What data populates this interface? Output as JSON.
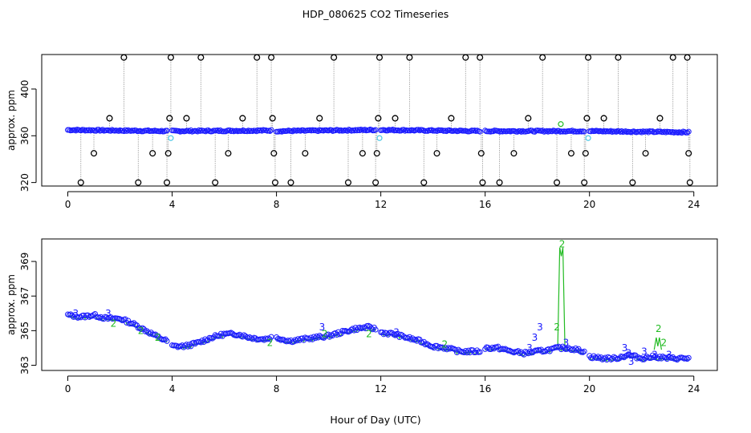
{
  "chart_data": [
    {
      "type": "scatter",
      "title": "HDP_080625  CO2 Timeseries",
      "ylabel": "approx. ppm",
      "xlim": [
        -1.0,
        24.9
      ],
      "ylim": [
        317.0,
        429.5
      ],
      "x_ticks": [
        0,
        4,
        8,
        12,
        16,
        20,
        24
      ],
      "y_ticks": [
        320,
        360,
        400
      ],
      "grid": false,
      "colors": {
        "main": "#1a1aff",
        "fill": "#4dc8e6",
        "outlier": "#000000",
        "green": "#22bb22",
        "line": "#999999"
      },
      "segments": [
        {
          "x": [
            0.0,
            3.8
          ],
          "y": [
            365.0,
            364.0
          ]
        },
        {
          "x": [
            4.0,
            7.8
          ],
          "y": [
            364.0,
            364.5
          ]
        },
        {
          "x": [
            8.0,
            11.8
          ],
          "y": [
            364.0,
            365.0
          ]
        },
        {
          "x": [
            12.0,
            15.8
          ],
          "y": [
            365.0,
            364.0
          ]
        },
        {
          "x": [
            16.0,
            19.8
          ],
          "y": [
            364.0,
            364.0
          ]
        },
        {
          "x": [
            20.0,
            23.8
          ],
          "y": [
            364.0,
            363.0
          ]
        }
      ],
      "filler_points": [
        {
          "x": 3.95,
          "y": 358
        },
        {
          "x": 11.95,
          "y": 358
        },
        {
          "x": 19.95,
          "y": 358
        },
        {
          "x": 18.9,
          "y": 370
        }
      ],
      "outliers": [
        {
          "x": 0.5,
          "y": 320
        },
        {
          "x": 1.0,
          "y": 345
        },
        {
          "x": 1.6,
          "y": 375
        },
        {
          "x": 2.15,
          "y": 427
        },
        {
          "x": 2.7,
          "y": 320
        },
        {
          "x": 3.25,
          "y": 345
        },
        {
          "x": 3.8,
          "y": 320
        },
        {
          "x": 3.85,
          "y": 345
        },
        {
          "x": 3.9,
          "y": 375
        },
        {
          "x": 3.95,
          "y": 427
        },
        {
          "x": 4.55,
          "y": 375
        },
        {
          "x": 5.1,
          "y": 427
        },
        {
          "x": 5.65,
          "y": 320
        },
        {
          "x": 6.15,
          "y": 345
        },
        {
          "x": 6.7,
          "y": 375
        },
        {
          "x": 7.25,
          "y": 427
        },
        {
          "x": 7.8,
          "y": 427
        },
        {
          "x": 7.85,
          "y": 375
        },
        {
          "x": 7.9,
          "y": 345
        },
        {
          "x": 7.95,
          "y": 320
        },
        {
          "x": 8.55,
          "y": 320
        },
        {
          "x": 9.1,
          "y": 345
        },
        {
          "x": 9.65,
          "y": 375
        },
        {
          "x": 10.2,
          "y": 427
        },
        {
          "x": 10.75,
          "y": 320
        },
        {
          "x": 11.3,
          "y": 345
        },
        {
          "x": 11.8,
          "y": 320
        },
        {
          "x": 11.85,
          "y": 345
        },
        {
          "x": 11.9,
          "y": 375
        },
        {
          "x": 11.95,
          "y": 427
        },
        {
          "x": 12.55,
          "y": 375
        },
        {
          "x": 13.1,
          "y": 427
        },
        {
          "x": 13.65,
          "y": 320
        },
        {
          "x": 14.15,
          "y": 345
        },
        {
          "x": 14.7,
          "y": 375
        },
        {
          "x": 15.25,
          "y": 427
        },
        {
          "x": 15.8,
          "y": 427
        },
        {
          "x": 15.85,
          "y": 345
        },
        {
          "x": 15.9,
          "y": 320
        },
        {
          "x": 16.55,
          "y": 320
        },
        {
          "x": 17.1,
          "y": 345
        },
        {
          "x": 17.65,
          "y": 375
        },
        {
          "x": 18.2,
          "y": 427
        },
        {
          "x": 18.75,
          "y": 320
        },
        {
          "x": 19.3,
          "y": 345
        },
        {
          "x": 19.8,
          "y": 320
        },
        {
          "x": 19.85,
          "y": 345
        },
        {
          "x": 19.9,
          "y": 375
        },
        {
          "x": 19.95,
          "y": 427
        },
        {
          "x": 20.55,
          "y": 375
        },
        {
          "x": 21.1,
          "y": 427
        },
        {
          "x": 21.65,
          "y": 320
        },
        {
          "x": 22.15,
          "y": 345
        },
        {
          "x": 22.7,
          "y": 375
        },
        {
          "x": 23.2,
          "y": 427
        },
        {
          "x": 23.75,
          "y": 427
        },
        {
          "x": 23.8,
          "y": 345
        },
        {
          "x": 23.85,
          "y": 320
        }
      ]
    },
    {
      "type": "scatter",
      "title": "",
      "xlabel": "Hour of Day (UTC)",
      "ylabel": "approx. ppm",
      "xlim": [
        -1.0,
        24.9
      ],
      "ylim": [
        362.7,
        370.3
      ],
      "x_ticks": [
        0,
        4,
        8,
        12,
        16,
        20,
        24
      ],
      "y_ticks": [
        363,
        365,
        367,
        369
      ],
      "grid": false,
      "colors": {
        "main": "#1a1aff",
        "green": "#22bb22"
      },
      "series": [
        {
          "x": [
            0.0,
            0.5,
            1.0,
            1.5,
            2.0,
            2.5,
            3.0,
            3.5,
            3.8
          ],
          "y": [
            365.9,
            365.8,
            365.9,
            365.7,
            365.7,
            365.4,
            365.0,
            364.6,
            364.4
          ]
        },
        {
          "x": [
            4.0,
            4.5,
            5.0,
            5.5,
            6.0,
            6.5,
            7.0,
            7.5,
            7.8
          ],
          "y": [
            364.1,
            364.1,
            364.3,
            364.6,
            364.8,
            364.8,
            364.6,
            364.5,
            364.6
          ]
        },
        {
          "x": [
            8.0,
            8.5,
            9.0,
            9.5,
            10.0,
            10.5,
            11.0,
            11.5,
            11.8
          ],
          "y": [
            364.6,
            364.4,
            364.5,
            364.6,
            364.7,
            364.9,
            365.1,
            365.2,
            365.1
          ]
        },
        {
          "x": [
            12.0,
            12.5,
            13.0,
            13.5,
            14.0,
            14.5,
            15.0,
            15.5,
            15.8
          ],
          "y": [
            364.9,
            364.8,
            364.6,
            364.4,
            364.1,
            364.0,
            363.8,
            363.8,
            363.8
          ]
        },
        {
          "x": [
            16.0,
            16.5,
            17.0,
            17.5,
            18.0,
            18.5,
            18.8,
            19.0,
            19.2,
            19.5,
            19.8
          ],
          "y": [
            364.0,
            364.0,
            363.8,
            363.7,
            363.8,
            363.9,
            364.0,
            364.0,
            364.0,
            363.9,
            363.8
          ]
        },
        {
          "x": [
            20.0,
            20.5,
            21.0,
            21.5,
            22.0,
            22.5,
            23.0,
            23.5,
            23.8
          ],
          "y": [
            363.5,
            363.4,
            363.4,
            363.6,
            363.4,
            363.5,
            363.4,
            363.4,
            363.4
          ]
        }
      ],
      "labels_3": [
        {
          "x": 0.3,
          "y": 366.0
        },
        {
          "x": 1.55,
          "y": 366.0
        },
        {
          "x": 9.75,
          "y": 365.2
        },
        {
          "x": 12.6,
          "y": 364.9
        },
        {
          "x": 17.7,
          "y": 364.0
        },
        {
          "x": 17.9,
          "y": 364.6
        },
        {
          "x": 18.1,
          "y": 365.2
        },
        {
          "x": 19.1,
          "y": 364.3
        },
        {
          "x": 21.35,
          "y": 364.0
        },
        {
          "x": 21.5,
          "y": 363.7
        },
        {
          "x": 21.6,
          "y": 363.2
        },
        {
          "x": 22.1,
          "y": 363.8
        },
        {
          "x": 22.5,
          "y": 363.6
        },
        {
          "x": 23.05,
          "y": 363.6
        }
      ],
      "labels_2": [
        {
          "x": 1.75,
          "y": 365.4
        },
        {
          "x": 2.8,
          "y": 365.0
        },
        {
          "x": 3.45,
          "y": 364.6
        },
        {
          "x": 7.75,
          "y": 364.3
        },
        {
          "x": 9.85,
          "y": 364.8
        },
        {
          "x": 11.55,
          "y": 364.8
        },
        {
          "x": 14.45,
          "y": 364.2
        },
        {
          "x": 18.75,
          "y": 365.2
        },
        {
          "x": 18.95,
          "y": 370.0
        },
        {
          "x": 22.65,
          "y": 365.1
        },
        {
          "x": 22.85,
          "y": 364.3
        }
      ],
      "spikes": [
        {
          "x": 18.9,
          "y": 369.8
        },
        {
          "x": 22.6,
          "y": 364.6
        }
      ]
    }
  ]
}
